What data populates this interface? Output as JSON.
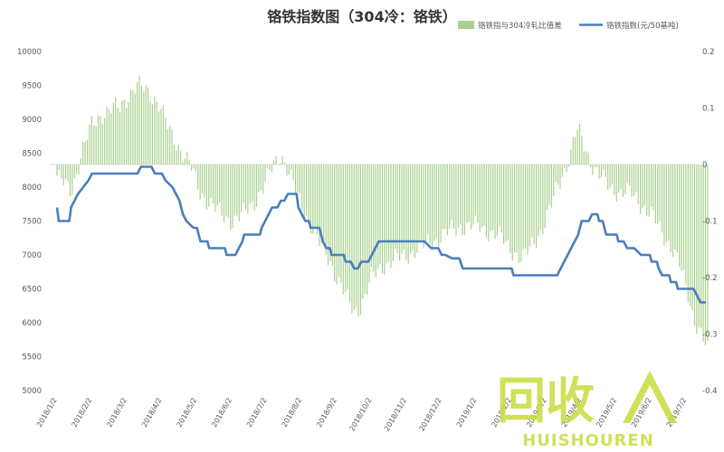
{
  "chart_data": {
    "type": "bar+line",
    "title": "铬铁指数图（304冷：铬铁）",
    "left_axis": {
      "ticks": [
        "10000",
        "9500",
        "9000",
        "8500",
        "8000",
        "7500",
        "7000",
        "6500",
        "6000",
        "5500",
        "5000"
      ],
      "ylim": [
        5000,
        10000
      ]
    },
    "right_axis": {
      "ticks": [
        "0.2",
        "0.1",
        "0",
        "-0.1",
        "-0.2",
        "-0.3",
        "-0.4"
      ],
      "ylim": [
        -0.4,
        0.2
      ]
    },
    "x_ticks": [
      "2018/1/2",
      "2018/2/2",
      "2018/3/2",
      "2018/4/2",
      "2018/5/2",
      "2018/6/2",
      "2018/7/2",
      "2018/8/2",
      "2018/9/2",
      "2018/10/2",
      "2018/11/2",
      "2018/12/2",
      "2019/1/2",
      "2019/2/2",
      "2019/3/2",
      "2019/4/2",
      "2019/5/2",
      "2019/6/2",
      "2019/7/2"
    ],
    "series": [
      {
        "name": "铬铁指与304冷轧比值差",
        "type": "bar",
        "axis": "right",
        "color": "#a9d18e",
        "points": [
          [
            0,
            -0.02
          ],
          [
            0.4,
            -0.05
          ],
          [
            0.7,
            0.02
          ],
          [
            1.0,
            0.07
          ],
          [
            1.3,
            0.09
          ],
          [
            1.6,
            0.1
          ],
          [
            1.8,
            0.1
          ],
          [
            2.0,
            0.12
          ],
          [
            2.3,
            0.14
          ],
          [
            2.6,
            0.13
          ],
          [
            2.9,
            0.11
          ],
          [
            3.2,
            0.06
          ],
          [
            3.5,
            0.03
          ],
          [
            3.8,
            0.0
          ],
          [
            4.1,
            -0.05
          ],
          [
            4.4,
            -0.07
          ],
          [
            4.7,
            -0.09
          ],
          [
            5.0,
            -0.1
          ],
          [
            5.3,
            -0.09
          ],
          [
            5.6,
            -0.07
          ],
          [
            5.9,
            -0.04
          ],
          [
            6.2,
            0.0
          ],
          [
            6.4,
            0.02
          ],
          [
            6.6,
            -0.01
          ],
          [
            6.9,
            -0.06
          ],
          [
            7.2,
            -0.1
          ],
          [
            7.5,
            -0.14
          ],
          [
            7.8,
            -0.17
          ],
          [
            8.0,
            -0.2
          ],
          [
            8.3,
            -0.24
          ],
          [
            8.5,
            -0.26
          ],
          [
            8.7,
            -0.25
          ],
          [
            9.0,
            -0.2
          ],
          [
            9.3,
            -0.18
          ],
          [
            9.6,
            -0.17
          ],
          [
            10.0,
            -0.16
          ],
          [
            10.3,
            -0.15
          ],
          [
            10.6,
            -0.14
          ],
          [
            10.9,
            -0.13
          ],
          [
            11.2,
            -0.12
          ],
          [
            11.5,
            -0.11
          ],
          [
            11.8,
            -0.11
          ],
          [
            12.1,
            -0.11
          ],
          [
            12.4,
            -0.12
          ],
          [
            12.7,
            -0.13
          ],
          [
            13.0,
            -0.15
          ],
          [
            13.3,
            -0.17
          ],
          [
            13.6,
            -0.14
          ],
          [
            13.9,
            -0.11
          ],
          [
            14.1,
            -0.08
          ],
          [
            14.3,
            -0.04
          ],
          [
            14.5,
            -0.01
          ],
          [
            14.7,
            0.02
          ],
          [
            14.8,
            0.05
          ],
          [
            14.9,
            0.06
          ],
          [
            15.1,
            0.03
          ],
          [
            15.3,
            0.0
          ],
          [
            15.5,
            -0.02
          ],
          [
            15.8,
            -0.04
          ],
          [
            16.1,
            -0.05
          ],
          [
            16.4,
            -0.05
          ],
          [
            16.7,
            -0.07
          ],
          [
            17.0,
            -0.09
          ],
          [
            17.3,
            -0.12
          ],
          [
            17.6,
            -0.15
          ],
          [
            17.8,
            -0.18
          ],
          [
            18.0,
            -0.22
          ],
          [
            18.2,
            -0.27
          ],
          [
            18.4,
            -0.3
          ],
          [
            18.6,
            -0.33
          ]
        ]
      },
      {
        "name": "铬铁指数(元/50基吨)",
        "type": "line",
        "axis": "left",
        "color": "#4a7ebb",
        "points": [
          [
            0,
            7700
          ],
          [
            0.05,
            7500
          ],
          [
            0.35,
            7500
          ],
          [
            0.4,
            7700
          ],
          [
            0.5,
            7800
          ],
          [
            0.6,
            7900
          ],
          [
            0.75,
            8000
          ],
          [
            0.9,
            8100
          ],
          [
            1.0,
            8200
          ],
          [
            1.5,
            8200
          ],
          [
            1.8,
            8200
          ],
          [
            2.0,
            8200
          ],
          [
            2.3,
            8200
          ],
          [
            2.4,
            8300
          ],
          [
            2.7,
            8300
          ],
          [
            2.8,
            8200
          ],
          [
            3.0,
            8200
          ],
          [
            3.1,
            8100
          ],
          [
            3.3,
            8000
          ],
          [
            3.4,
            7900
          ],
          [
            3.5,
            7800
          ],
          [
            3.6,
            7600
          ],
          [
            3.7,
            7500
          ],
          [
            3.9,
            7400
          ],
          [
            4.0,
            7400
          ],
          [
            4.1,
            7200
          ],
          [
            4.3,
            7200
          ],
          [
            4.35,
            7100
          ],
          [
            4.7,
            7100
          ],
          [
            4.8,
            7100
          ],
          [
            4.85,
            7000
          ],
          [
            5.1,
            7000
          ],
          [
            5.2,
            7100
          ],
          [
            5.3,
            7200
          ],
          [
            5.35,
            7300
          ],
          [
            5.6,
            7300
          ],
          [
            5.8,
            7300
          ],
          [
            5.85,
            7400
          ],
          [
            5.95,
            7500
          ],
          [
            6.05,
            7600
          ],
          [
            6.15,
            7700
          ],
          [
            6.3,
            7700
          ],
          [
            6.4,
            7800
          ],
          [
            6.5,
            7800
          ],
          [
            6.6,
            7900
          ],
          [
            6.85,
            7900
          ],
          [
            6.9,
            7700
          ],
          [
            7.0,
            7600
          ],
          [
            7.1,
            7500
          ],
          [
            7.2,
            7500
          ],
          [
            7.25,
            7400
          ],
          [
            7.5,
            7400
          ],
          [
            7.6,
            7200
          ],
          [
            7.7,
            7100
          ],
          [
            7.8,
            7100
          ],
          [
            7.85,
            7000
          ],
          [
            8.0,
            7000
          ],
          [
            8.2,
            7000
          ],
          [
            8.25,
            6900
          ],
          [
            8.4,
            6900
          ],
          [
            8.5,
            6800
          ],
          [
            8.6,
            6800
          ],
          [
            8.7,
            6900
          ],
          [
            8.9,
            6900
          ],
          [
            9.0,
            7000
          ],
          [
            9.1,
            7100
          ],
          [
            9.2,
            7200
          ],
          [
            10.0,
            7200
          ],
          [
            10.5,
            7200
          ],
          [
            10.7,
            7100
          ],
          [
            10.9,
            7100
          ],
          [
            11.0,
            7000
          ],
          [
            11.1,
            7000
          ],
          [
            11.3,
            6950
          ],
          [
            11.5,
            6950
          ],
          [
            11.6,
            6800
          ],
          [
            12.0,
            6800
          ],
          [
            12.5,
            6800
          ],
          [
            13.0,
            6800
          ],
          [
            13.05,
            6700
          ],
          [
            13.5,
            6700
          ],
          [
            14.0,
            6700
          ],
          [
            14.3,
            6700
          ],
          [
            14.4,
            6800
          ],
          [
            14.5,
            6900
          ],
          [
            14.6,
            7000
          ],
          [
            14.7,
            7100
          ],
          [
            14.8,
            7200
          ],
          [
            14.9,
            7300
          ],
          [
            15.0,
            7500
          ],
          [
            15.2,
            7500
          ],
          [
            15.3,
            7600
          ],
          [
            15.45,
            7600
          ],
          [
            15.5,
            7500
          ],
          [
            15.6,
            7500
          ],
          [
            15.7,
            7300
          ],
          [
            16.0,
            7300
          ],
          [
            16.05,
            7200
          ],
          [
            16.2,
            7200
          ],
          [
            16.3,
            7100
          ],
          [
            16.5,
            7100
          ],
          [
            16.6,
            7050
          ],
          [
            16.7,
            7000
          ],
          [
            16.95,
            7000
          ],
          [
            17.0,
            6900
          ],
          [
            17.15,
            6900
          ],
          [
            17.2,
            6800
          ],
          [
            17.3,
            6700
          ],
          [
            17.5,
            6700
          ],
          [
            17.55,
            6600
          ],
          [
            17.7,
            6600
          ],
          [
            17.75,
            6500
          ],
          [
            18.2,
            6500
          ],
          [
            18.3,
            6400
          ],
          [
            18.4,
            6300
          ],
          [
            18.55,
            6300
          ]
        ]
      }
    ],
    "legend_position": "top-right",
    "grid": false
  },
  "watermark": {
    "text_main": "回收",
    "text_sub": "HUISHOUREN"
  }
}
